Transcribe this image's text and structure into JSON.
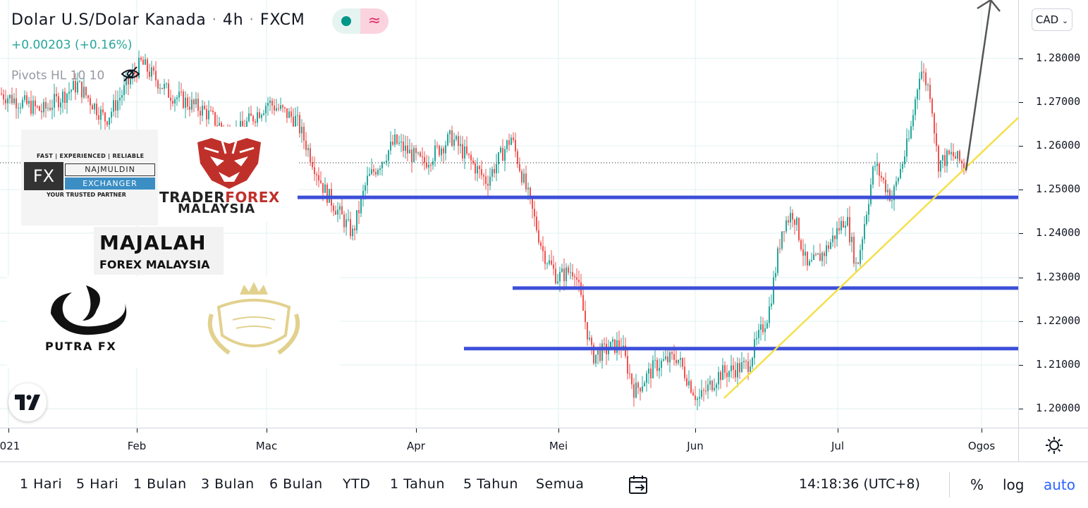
{
  "legend": {
    "symbol": "Dolar U.S/Dolar Kanada",
    "interval": "4h",
    "exchange": "FXCM",
    "separator": "·",
    "change": "+0.00203 (+0.16%)",
    "indicator": "Pivots HL 10 10",
    "indicator_visibility_icon": "eye-crossed-icon",
    "status_icon": "market-open-dot-icon",
    "wave_icon": "≈"
  },
  "price_scale": {
    "currency": "CAD",
    "labels": [
      "1.28000",
      "1.27000",
      "1.26000",
      "1.25000",
      "1.24000",
      "1.23000",
      "1.22000",
      "1.21000",
      "1.20000"
    ]
  },
  "time_axis": {
    "labels": [
      "021",
      "Feb",
      "Mac",
      "Apr",
      "Mei",
      "Jun",
      "Jul",
      "Ogos"
    ]
  },
  "bottom_bar": {
    "ranges": [
      "1 Hari",
      "5 Hari",
      "1 Bulan",
      "3 Bulan",
      "6 Bulan",
      "YTD",
      "1 Tahun",
      "5 Tahun",
      "Semua"
    ],
    "goto_icon": "calendar-goto-icon",
    "clock": "14:18:36 (UTC+8)",
    "percent": "%",
    "log": "log",
    "auto": "auto",
    "accent_color": "#2962ff"
  },
  "logos": {
    "fx_najmuldin": {
      "tagline": "FAST | EXPERIENCED | RELIABLE",
      "mark": "FX",
      "name": "NAJMULDIN",
      "sub": "EXCHANGER",
      "footer": "YOUR TRUSTED PARTNER"
    },
    "trader_forex": {
      "line1a": "TRADER",
      "line1b": "FOREX",
      "line2": "MALAYSIA"
    },
    "majalah": {
      "line1": "MAJALAH",
      "line2": "FOREX MALAYSIA"
    },
    "putra": {
      "name": "PUTRA FX"
    }
  },
  "chart_data": {
    "type": "candlestick",
    "symbol": "USDCAD",
    "y_range": [
      1.195,
      1.29
    ],
    "horizontal_levels": [
      1.2483,
      1.2276,
      1.2138
    ],
    "last_price_line": 1.2562,
    "trendline": {
      "from": [
        "Jun",
        1.2025
      ],
      "to": [
        "Ogos",
        1.2665
      ]
    },
    "projection_arrow": {
      "from": 1.2545,
      "to": 1.29
    },
    "colors": {
      "up": "#26a69a",
      "down": "#ef5350",
      "levels": "#3c4fd9",
      "trendline": "#f5e04a"
    }
  }
}
